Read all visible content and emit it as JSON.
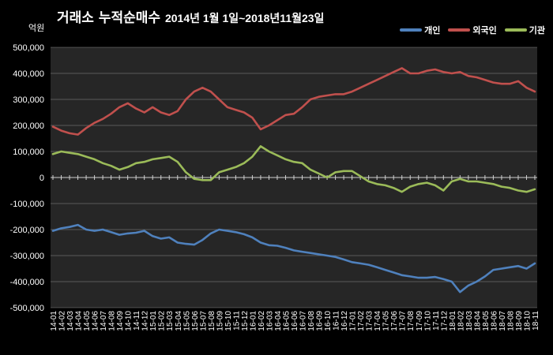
{
  "chart_data": {
    "type": "line",
    "title": "거래소  누적순매수",
    "subtitle": "2014년 1월 1일~2018년11월23일",
    "ylabel": "억원",
    "ylim": [
      -500000,
      500000
    ],
    "yticks": [
      "500,000",
      "400,000",
      "300,000",
      "200,000",
      "100,000",
      "0",
      "-100,000",
      "-200,000",
      "-300,000",
      "-400,000",
      "-500,000"
    ],
    "categories": [
      "14-01",
      "14-02",
      "14-03",
      "14-04",
      "14-05",
      "14-06",
      "14-07",
      "14-08",
      "14-09",
      "14-10",
      "14-11",
      "14-12",
      "15-01",
      "15-02",
      "15-03",
      "15-04",
      "15-05",
      "15-06",
      "15-07",
      "15-08",
      "15-09",
      "15-10",
      "15-11",
      "15-12",
      "16-01",
      "16-02",
      "16-03",
      "16-04",
      "16-05",
      "16-06",
      "16-07",
      "16-08",
      "16-09",
      "16-10",
      "16-11",
      "16-12",
      "17-01",
      "17-02",
      "17-03",
      "17-04",
      "17-05",
      "17-06",
      "17-07",
      "17-08",
      "17-09",
      "17-10",
      "17-11",
      "17-12",
      "18-01",
      "18-02",
      "18-03",
      "18-04",
      "18-05",
      "18-06",
      "18-07",
      "18-08",
      "18-09",
      "18-10",
      "18-11"
    ],
    "grid": true,
    "legend_position": "top-right",
    "series": [
      {
        "name": "개인",
        "color": "#4f81bd",
        "values": [
          -205000,
          -195000,
          -190000,
          -182000,
          -200000,
          -205000,
          -200000,
          -210000,
          -220000,
          -215000,
          -212000,
          -205000,
          -225000,
          -235000,
          -230000,
          -250000,
          -255000,
          -258000,
          -240000,
          -215000,
          -200000,
          -205000,
          -210000,
          -218000,
          -230000,
          -250000,
          -260000,
          -262000,
          -270000,
          -280000,
          -285000,
          -290000,
          -295000,
          -300000,
          -305000,
          -315000,
          -325000,
          -330000,
          -335000,
          -345000,
          -355000,
          -365000,
          -375000,
          -380000,
          -385000,
          -385000,
          -382000,
          -390000,
          -400000,
          -440000,
          -415000,
          -400000,
          -380000,
          -355000,
          -350000,
          -345000,
          -340000,
          -350000,
          -330000
        ]
      },
      {
        "name": "외국인",
        "color": "#c0504d",
        "values": [
          195000,
          180000,
          170000,
          165000,
          190000,
          210000,
          225000,
          245000,
          270000,
          285000,
          265000,
          250000,
          270000,
          250000,
          240000,
          255000,
          300000,
          330000,
          345000,
          330000,
          300000,
          270000,
          260000,
          250000,
          230000,
          185000,
          200000,
          220000,
          240000,
          245000,
          270000,
          300000,
          310000,
          315000,
          320000,
          320000,
          330000,
          345000,
          360000,
          375000,
          390000,
          405000,
          420000,
          400000,
          400000,
          410000,
          415000,
          405000,
          400000,
          405000,
          390000,
          385000,
          375000,
          365000,
          360000,
          360000,
          370000,
          345000,
          330000
        ]
      },
      {
        "name": "기관",
        "color": "#9bbb59",
        "values": [
          90000,
          100000,
          95000,
          90000,
          80000,
          70000,
          55000,
          45000,
          30000,
          40000,
          55000,
          60000,
          70000,
          75000,
          80000,
          60000,
          20000,
          -5000,
          -10000,
          -10000,
          20000,
          30000,
          40000,
          55000,
          80000,
          120000,
          100000,
          85000,
          70000,
          60000,
          55000,
          30000,
          15000,
          0,
          20000,
          25000,
          25000,
          5000,
          -15000,
          -25000,
          -30000,
          -40000,
          -55000,
          -35000,
          -25000,
          -20000,
          -30000,
          -50000,
          -15000,
          -5000,
          -15000,
          -15000,
          -20000,
          -25000,
          -35000,
          -40000,
          -50000,
          -55000,
          -45000
        ]
      }
    ]
  }
}
